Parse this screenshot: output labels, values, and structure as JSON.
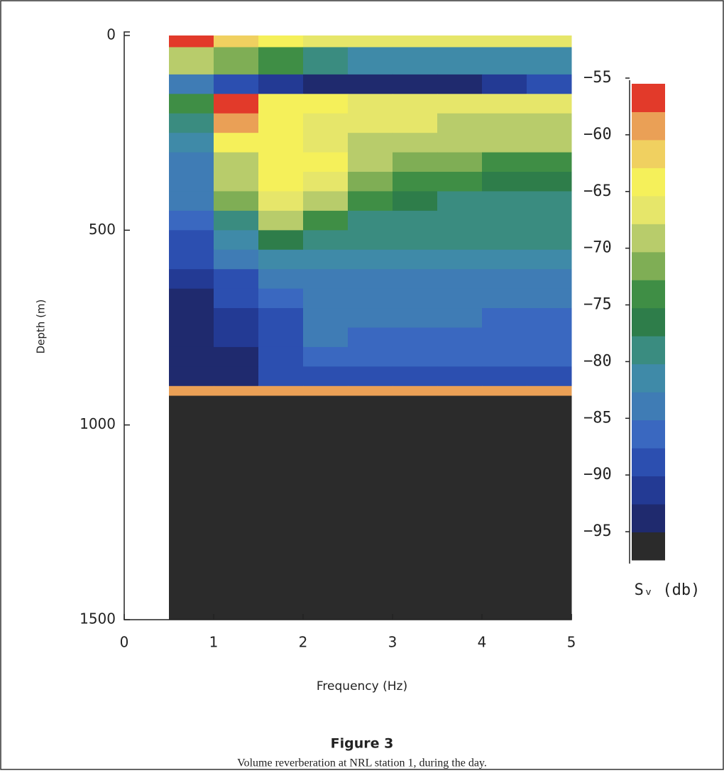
{
  "chart_data": {
    "type": "heatmap",
    "figure_label": "Figure 3",
    "caption": "Volume reverberation at NRL station 1, during the day.",
    "xlabel": "Frequency (Hz)",
    "ylabel": "Depth (m)",
    "xlim": [
      0,
      5
    ],
    "xticks": [
      0,
      1,
      2,
      3,
      4,
      5
    ],
    "ylim": [
      1500,
      0
    ],
    "yticks": [
      0,
      500,
      1000,
      1500
    ],
    "x_edges": [
      0.5,
      1,
      1.5,
      2,
      2.5,
      3,
      3.5,
      4,
      4.5,
      5
    ],
    "y_edges": [
      0,
      30,
      100,
      150,
      200,
      250,
      300,
      350,
      400,
      450,
      500,
      550,
      600,
      650,
      700,
      750,
      800,
      850,
      900,
      925,
      1500
    ],
    "values": [
      [
        -56,
        -62,
        -65,
        -66,
        -66,
        -66,
        -66,
        -66,
        -66
      ],
      [
        -70,
        -72,
        -75,
        -80,
        -82,
        -82,
        -82,
        -82,
        -82
      ],
      [
        -85,
        -90,
        -92,
        -93,
        -93,
        -93,
        -93,
        -92,
        -90
      ],
      [
        -75,
        -57,
        -63,
        -65,
        -66,
        -66,
        -66,
        -66,
        -66
      ],
      [
        -80,
        -58,
        -64,
        -66,
        -67,
        -67,
        -68,
        -68,
        -68
      ],
      [
        -82,
        -63,
        -64,
        -66,
        -68,
        -69,
        -70,
        -70,
        -70
      ],
      [
        -83,
        -68,
        -64,
        -65,
        -69,
        -71,
        -72,
        -73,
        -73
      ],
      [
        -85,
        -70,
        -64,
        -66,
        -72,
        -74,
        -75,
        -76,
        -76
      ],
      [
        -85,
        -72,
        -66,
        -70,
        -75,
        -77,
        -78,
        -78,
        -78
      ],
      [
        -87,
        -78,
        -70,
        -74,
        -78,
        -79,
        -79,
        -79,
        -79
      ],
      [
        -88,
        -82,
        -76,
        -79,
        -80,
        -80,
        -80,
        -80,
        -80
      ],
      [
        -90,
        -85,
        -82,
        -82,
        -81,
        -82,
        -82,
        -82,
        -82
      ],
      [
        -92,
        -88,
        -84,
        -83,
        -84,
        -83,
        -83,
        -84,
        -84
      ],
      [
        -93,
        -90,
        -86,
        -84,
        -85,
        -84,
        -84,
        -85,
        -85
      ],
      [
        -93,
        -91,
        -88,
        -85,
        -85,
        -85,
        -85,
        -86,
        -86
      ],
      [
        -94,
        -92,
        -89,
        -85,
        -86,
        -86,
        -86,
        -86,
        -86
      ],
      [
        -95,
        -93,
        -90,
        -86,
        -86,
        -87,
        -87,
        -87,
        -87
      ],
      [
        -95,
        -93,
        -90,
        -88,
        -88,
        -88,
        -88,
        -88,
        -88
      ],
      [
        -58,
        -58,
        -58,
        -58,
        -58,
        -58,
        -58,
        -58,
        -58
      ],
      [
        -97,
        -97,
        -97,
        -97,
        -97,
        -97,
        -97,
        -97,
        -97
      ]
    ],
    "clim": [
      -97.5,
      -55.5
    ],
    "colormap": [
      "#2b2b2b",
      "#1f2a6e",
      "#233a94",
      "#2c4fb0",
      "#3a68c0",
      "#3f7cb5",
      "#3f8aa8",
      "#3a8c80",
      "#2e7d4a",
      "#3f8e45",
      "#7fae55",
      "#b8cc6b",
      "#e6e66a",
      "#f5f05a",
      "#f0d060",
      "#eaa056",
      "#e23a2a"
    ],
    "cticks": [
      {
        "value": -55,
        "label": "−55"
      },
      {
        "value": -60,
        "label": "−60"
      },
      {
        "value": -65,
        "label": "−65"
      },
      {
        "value": -70,
        "label": "−70"
      },
      {
        "value": -75,
        "label": "−75"
      },
      {
        "value": -80,
        "label": "−80"
      },
      {
        "value": -85,
        "label": "−85"
      },
      {
        "value": -90,
        "label": "−90"
      },
      {
        "value": -95,
        "label": "−95"
      }
    ],
    "colorbar_label": "Sᵥ (db)"
  }
}
